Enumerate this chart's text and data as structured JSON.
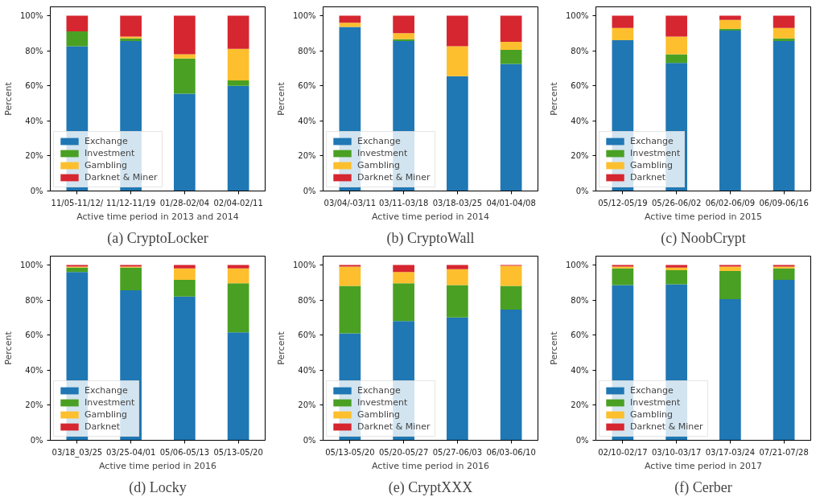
{
  "chart_data": [
    {
      "type": "bar",
      "stacked": true,
      "title": "(a) CryptoLocker",
      "xlabel": "Active time period in 2013 and 2014",
      "ylabel": "Percent",
      "categories": [
        "11/05-11/12/",
        "11/12-11/19",
        "01/28-02/04",
        "02/04-02/11"
      ],
      "series": [
        {
          "name": "Exchange",
          "color": "#1f77b4",
          "values": [
            82.5,
            85.5,
            55.5,
            60
          ]
        },
        {
          "name": "Investment",
          "color": "#4aa023",
          "values": [
            8.5,
            1.5,
            20,
            3
          ]
        },
        {
          "name": "Gambling",
          "color": "#fdbf2d",
          "values": [
            0,
            1,
            2.5,
            18
          ]
        },
        {
          "name": "Darknet & Miner",
          "color": "#d62630",
          "values": [
            9,
            12,
            22,
            19
          ]
        }
      ],
      "ylim": [
        0,
        105
      ],
      "yticks": [
        {
          "value": 0,
          "label": "0%"
        },
        {
          "value": 20,
          "label": "20%"
        },
        {
          "value": 40,
          "label": "40%"
        },
        {
          "value": 60,
          "label": "60%"
        },
        {
          "value": 80,
          "label": "80%"
        },
        {
          "value": 100,
          "label": "100%"
        }
      ],
      "legend": "bottom left",
      "grid": false
    },
    {
      "type": "bar",
      "stacked": true,
      "title": "(b) CryptoWall",
      "xlabel": "Active time period in 2014",
      "ylabel": "Percent",
      "categories": [
        "03/04/-03/11",
        "03/11-03/18",
        "03/18-03/25",
        "04/01-04/08"
      ],
      "series": [
        {
          "name": "Exchange",
          "color": "#1f77b4",
          "values": [
            93.5,
            85.5,
            65.5,
            72.5
          ]
        },
        {
          "name": "Investment",
          "color": "#4aa023",
          "values": [
            0,
            1,
            0,
            8
          ]
        },
        {
          "name": "Gambling",
          "color": "#fdbf2d",
          "values": [
            2.5,
            3.5,
            17,
            4.5
          ]
        },
        {
          "name": "Darknet & Miner",
          "color": "#d62630",
          "values": [
            4,
            10,
            17.5,
            15
          ]
        }
      ],
      "ylim": [
        0,
        105
      ],
      "yticks": [
        {
          "value": 0,
          "label": "0%"
        },
        {
          "value": 20,
          "label": "20%"
        },
        {
          "value": 40,
          "label": "40%"
        },
        {
          "value": 60,
          "label": "60%"
        },
        {
          "value": 80,
          "label": "80%"
        },
        {
          "value": 100,
          "label": "100%"
        }
      ],
      "legend": "bottom left",
      "grid": false
    },
    {
      "type": "bar",
      "stacked": true,
      "title": "(c) NoobCrypt",
      "xlabel": "Active time period in 2015",
      "ylabel": "Percent",
      "categories": [
        "05/12-05/19",
        "05/26-06/02",
        "06/02-06/09",
        "06/09-06/16"
      ],
      "series": [
        {
          "name": "Exchange",
          "color": "#1f77b4",
          "values": [
            86,
            73,
            91.5,
            85.5
          ]
        },
        {
          "name": "Investment",
          "color": "#4aa023",
          "values": [
            0,
            5,
            1,
            1.5
          ]
        },
        {
          "name": "Gambling",
          "color": "#fdbf2d",
          "values": [
            7,
            10,
            5,
            6
          ]
        },
        {
          "name": "Darknet",
          "color": "#d62630",
          "values": [
            7,
            12,
            2.5,
            7
          ]
        }
      ],
      "ylim": [
        0,
        105
      ],
      "yticks": [
        {
          "value": 0,
          "label": "0%"
        },
        {
          "value": 20,
          "label": "20%"
        },
        {
          "value": 40,
          "label": "40%"
        },
        {
          "value": 60,
          "label": "60%"
        },
        {
          "value": 80,
          "label": "80%"
        },
        {
          "value": 100,
          "label": "100%"
        }
      ],
      "legend": "bottom left",
      "grid": false
    },
    {
      "type": "bar",
      "stacked": true,
      "title": "(d) Locky",
      "xlabel": "Active time period in 2016",
      "ylabel": "Percent",
      "categories": [
        "03/18_03/25",
        "03/25-04/01",
        "05/06-05/13",
        "05/13-05/20"
      ],
      "series": [
        {
          "name": "Exchange",
          "color": "#1f77b4",
          "values": [
            96,
            85.5,
            82,
            61.5
          ]
        },
        {
          "name": "Investment",
          "color": "#4aa023",
          "values": [
            2.5,
            13,
            9.5,
            28
          ]
        },
        {
          "name": "Gambling",
          "color": "#fdbf2d",
          "values": [
            0.5,
            0.5,
            6.5,
            8.5
          ]
        },
        {
          "name": "Darknet",
          "color": "#d62630",
          "values": [
            1,
            1,
            2,
            2
          ]
        }
      ],
      "ylim": [
        0,
        105
      ],
      "yticks": [
        {
          "value": 0,
          "label": "0%"
        },
        {
          "value": 20,
          "label": "20%"
        },
        {
          "value": 40,
          "label": "40%"
        },
        {
          "value": 60,
          "label": "60%"
        },
        {
          "value": 80,
          "label": "80%"
        },
        {
          "value": 100,
          "label": "100%"
        }
      ],
      "legend": "bottom left",
      "grid": false
    },
    {
      "type": "bar",
      "stacked": true,
      "title": "(e) CryptXXX",
      "xlabel": "Active time period in 2016",
      "ylabel": "Percent",
      "categories": [
        "05/13-05/20",
        "05/20-05/27",
        "05/27-06/03",
        "06/03-06/10"
      ],
      "series": [
        {
          "name": "Exchange",
          "color": "#1f77b4",
          "values": [
            61,
            68,
            70,
            74.5
          ]
        },
        {
          "name": "Investment",
          "color": "#4aa023",
          "values": [
            27,
            21.5,
            18.5,
            13.5
          ]
        },
        {
          "name": "Gambling",
          "color": "#fdbf2d",
          "values": [
            11,
            6.5,
            9,
            11.5
          ]
        },
        {
          "name": "Darknet & Miner",
          "color": "#d62630",
          "values": [
            1,
            4,
            2.5,
            0.5
          ]
        }
      ],
      "ylim": [
        0,
        105
      ],
      "yticks": [
        {
          "value": 0,
          "label": "0%"
        },
        {
          "value": 20,
          "label": "20%"
        },
        {
          "value": 40,
          "label": "40%"
        },
        {
          "value": 60,
          "label": "60%"
        },
        {
          "value": 80,
          "label": "80%"
        },
        {
          "value": 100,
          "label": "100%"
        }
      ],
      "legend": "bottom left",
      "grid": false
    },
    {
      "type": "bar",
      "stacked": true,
      "title": "(f) Cerber",
      "xlabel": "Active time period in 2017",
      "ylabel": "Percent",
      "categories": [
        "02/10-02/17",
        "03/10-03/17",
        "03/17-03/24",
        "07/21-07/28"
      ],
      "series": [
        {
          "name": "Exchange",
          "color": "#1f77b4",
          "values": [
            88.5,
            89,
            80.5,
            91.5
          ]
        },
        {
          "name": "Investment",
          "color": "#4aa023",
          "values": [
            9.5,
            8,
            16,
            6.5
          ]
        },
        {
          "name": "Gambling",
          "color": "#fdbf2d",
          "values": [
            1,
            1.5,
            2.5,
            1
          ]
        },
        {
          "name": "Darknet & Miner",
          "color": "#d62630",
          "values": [
            1,
            1.5,
            1,
            1
          ]
        }
      ],
      "ylim": [
        0,
        105
      ],
      "yticks": [
        {
          "value": 0,
          "label": "0%"
        },
        {
          "value": 20,
          "label": "20%"
        },
        {
          "value": 40,
          "label": "40%"
        },
        {
          "value": 60,
          "label": "60%"
        },
        {
          "value": 80,
          "label": "80%"
        },
        {
          "value": 100,
          "label": "100%"
        }
      ],
      "legend": "bottom left",
      "grid": false
    }
  ]
}
